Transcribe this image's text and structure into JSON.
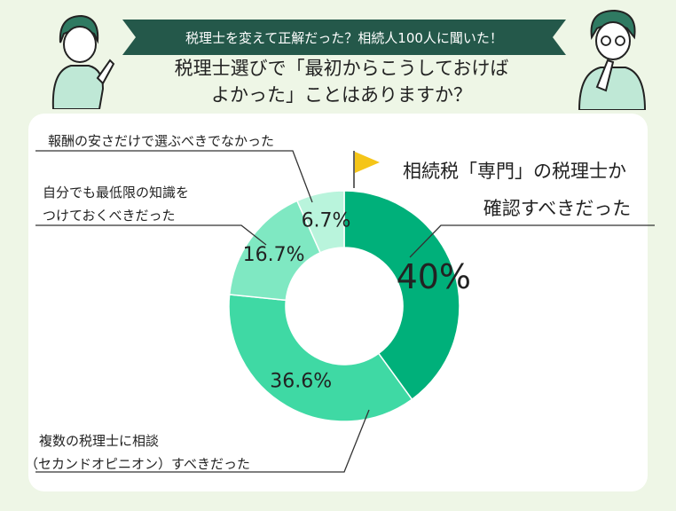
{
  "header": {
    "banner": "税理士を変えて正解だった？相続人100人に聞いた！",
    "question_line1": "税理士選びで「最初からこうしておけば",
    "question_line2": "よかった」ことはありますか？"
  },
  "colors": {
    "banner_bg": "#24584a",
    "page_bg": "#eef6e6",
    "slice1": "#00b07a",
    "slice2": "#3fd9a4",
    "slice3": "#7fe8c2",
    "slice4": "#b9f4dc",
    "flag": "#f5c518"
  },
  "chart_data": {
    "type": "pie",
    "categories": [
      "相続税「専門」の税理士か確認すべきだった",
      "複数の税理士に相談（セカンドオピニオン）すべきだった",
      "自分でも最低限の知識をつけておくべきだった",
      "報酬の安さだけで選ぶべきでなかった"
    ],
    "values": [
      40,
      36.6,
      16.7,
      6.7
    ],
    "value_labels": [
      "40%",
      "36.6%",
      "16.7%",
      "6.7%"
    ],
    "label_lines": [
      [
        "相続税「専門」の税理士か",
        "確認すべきだった"
      ],
      [
        "複数の税理士に相談",
        "（セカンドオピニオン）すべきだった"
      ],
      [
        "自分でも最低限の知識を",
        "つけておくべきだった"
      ],
      [
        "報酬の安さだけで選ぶべきでなかった"
      ]
    ]
  }
}
